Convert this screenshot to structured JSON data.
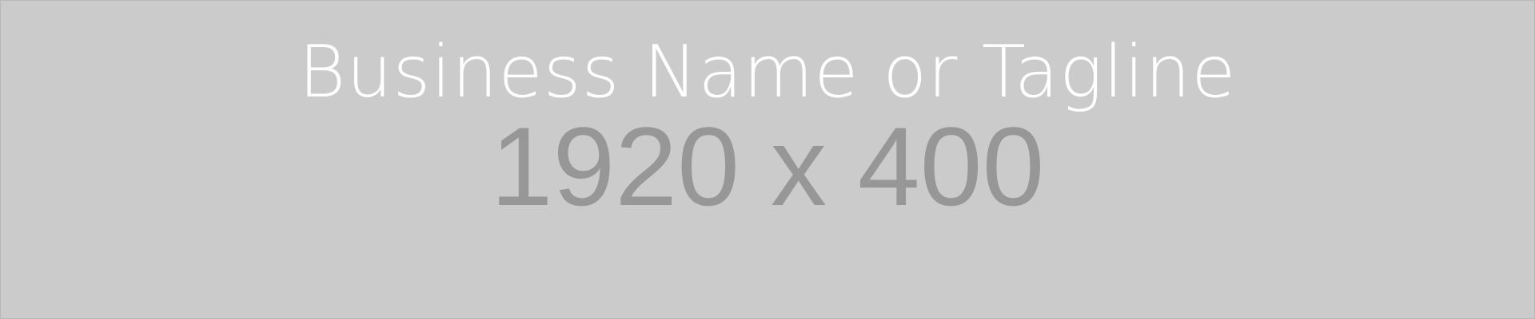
{
  "banner": {
    "tagline": "Business Name or Tagline",
    "dimensions": "1920 x 400",
    "colors": {
      "background": "#cbcbcb",
      "tagline": "#ffffff",
      "dimensions": "#979797"
    }
  }
}
